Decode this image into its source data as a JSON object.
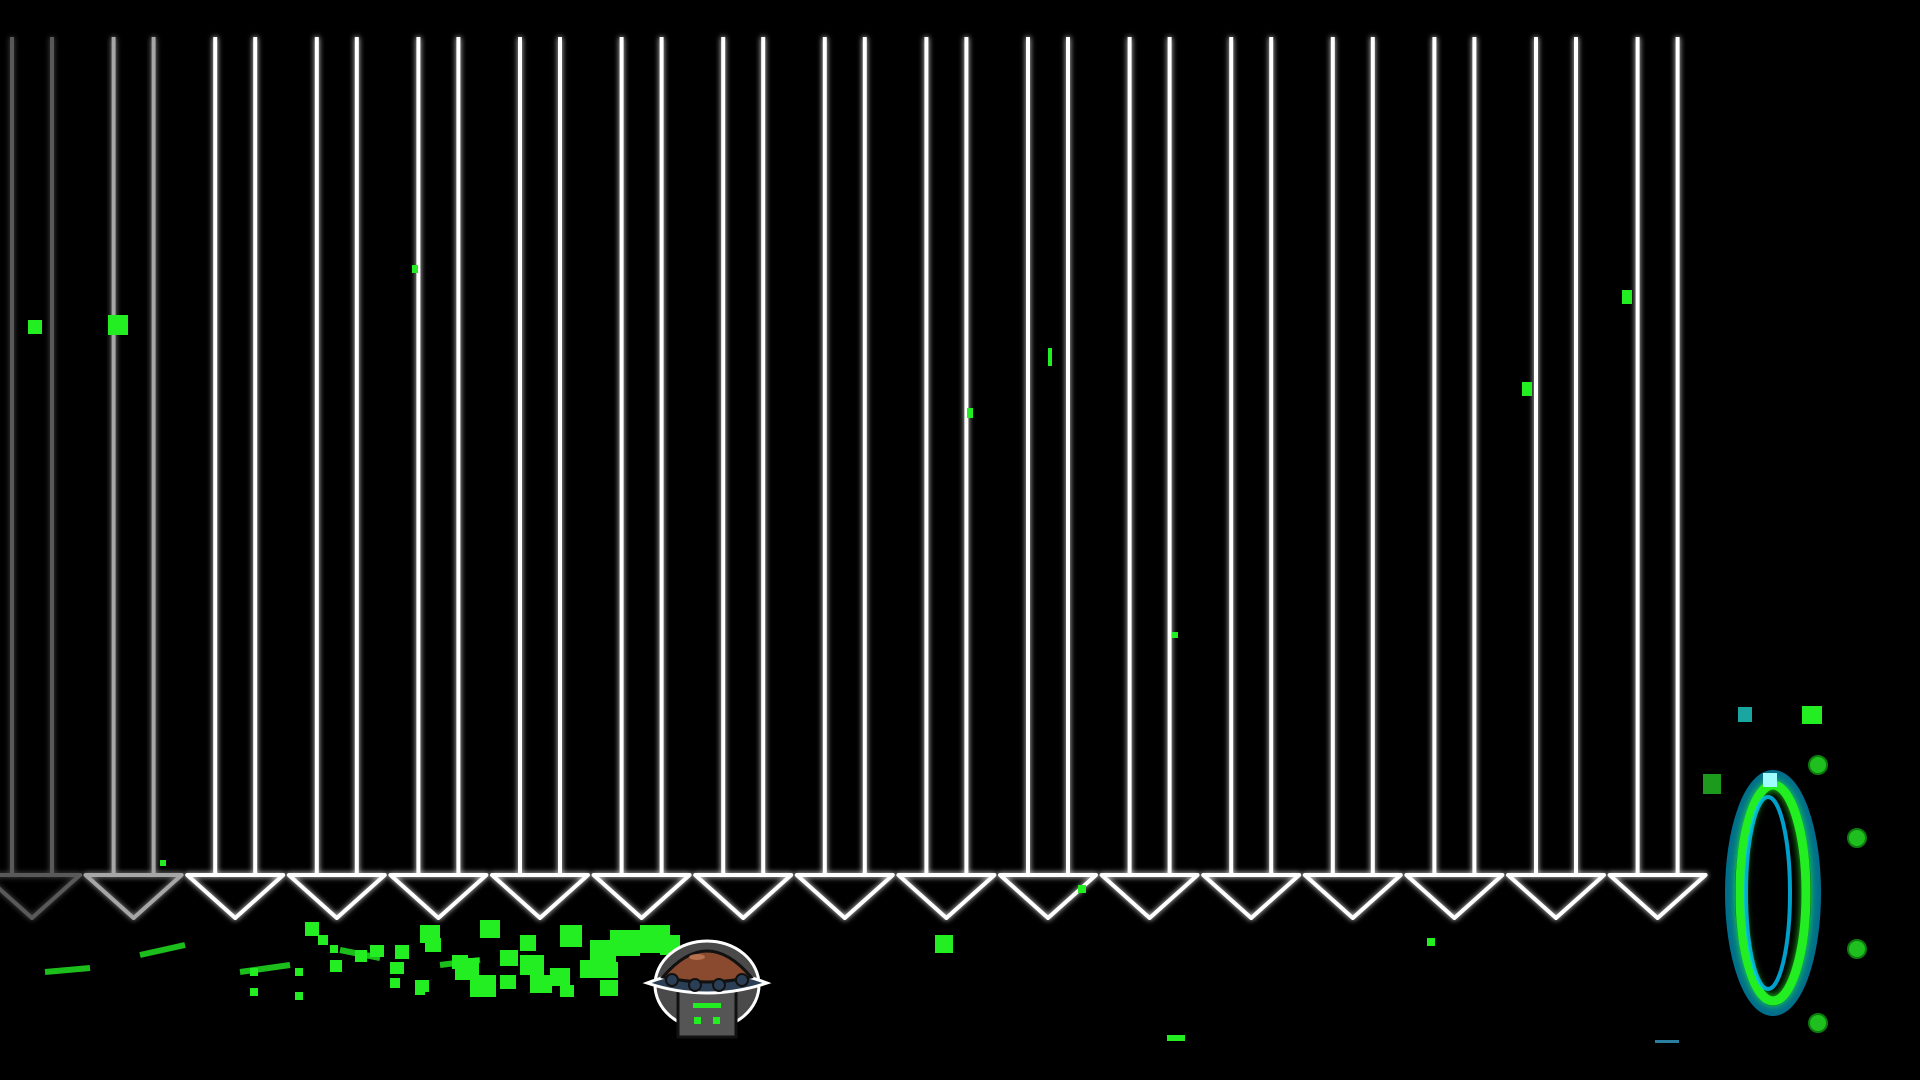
{
  "game": {
    "background_color": "#000000",
    "pillar_color": "#ffffff",
    "particle_color": "#22ee22",
    "portal_colors": [
      "#00c8ff",
      "#22ee22"
    ],
    "orb_color": "#1fbf1f"
  },
  "hazard_wall": {
    "pillar_count": 17,
    "faded_pillar_count": 2
  },
  "player": {
    "icon": "ufo-icon",
    "dome_color": "#8a4a2f",
    "body_color": "#555555",
    "accent_color": "#22ee22"
  },
  "portal": {
    "icon": "gravity-portal-icon"
  }
}
